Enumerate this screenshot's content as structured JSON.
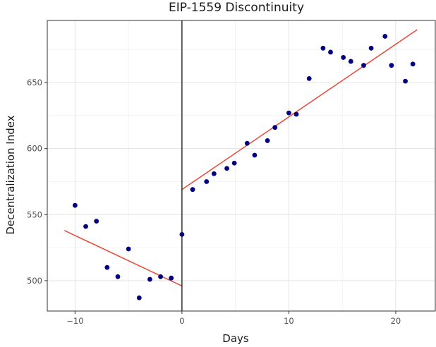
{
  "chart_data": {
    "type": "scatter",
    "title": "EIP-1559 Discontinuity",
    "xlabel": "Days",
    "ylabel": "Decentralization Index",
    "xlim": [
      -12.6,
      23.7
    ],
    "ylim": [
      477,
      697
    ],
    "xticks": [
      -10,
      0,
      10,
      20
    ],
    "yticks": [
      500,
      550,
      600,
      650
    ],
    "x_tick_labels": [
      "−10",
      "0",
      "10",
      "20"
    ],
    "y_tick_labels": [
      "500",
      "550",
      "600",
      "650"
    ],
    "grid": true,
    "cutoff_x": 0,
    "point_color": "#000080",
    "fit_color": "#e8493a",
    "cutoff_color": "#000000",
    "points": [
      {
        "x": -10,
        "y": 557
      },
      {
        "x": -9,
        "y": 541
      },
      {
        "x": -8,
        "y": 545
      },
      {
        "x": -7,
        "y": 510
      },
      {
        "x": -6,
        "y": 503
      },
      {
        "x": -5,
        "y": 524
      },
      {
        "x": -4,
        "y": 487
      },
      {
        "x": -3,
        "y": 501
      },
      {
        "x": -2,
        "y": 503
      },
      {
        "x": -1,
        "y": 502
      },
      {
        "x": 0,
        "y": 535
      },
      {
        "x": 1,
        "y": 569
      },
      {
        "x": 2.3,
        "y": 575
      },
      {
        "x": 3,
        "y": 581
      },
      {
        "x": 4.2,
        "y": 585
      },
      {
        "x": 4.9,
        "y": 589
      },
      {
        "x": 6.1,
        "y": 604
      },
      {
        "x": 6.8,
        "y": 595
      },
      {
        "x": 8,
        "y": 606
      },
      {
        "x": 8.7,
        "y": 616
      },
      {
        "x": 10,
        "y": 627
      },
      {
        "x": 10.7,
        "y": 626
      },
      {
        "x": 11.9,
        "y": 653
      },
      {
        "x": 13.2,
        "y": 676
      },
      {
        "x": 13.9,
        "y": 673
      },
      {
        "x": 15.1,
        "y": 669
      },
      {
        "x": 15.8,
        "y": 666
      },
      {
        "x": 17,
        "y": 663
      },
      {
        "x": 17.7,
        "y": 676
      },
      {
        "x": 19,
        "y": 685
      },
      {
        "x": 19.6,
        "y": 663
      },
      {
        "x": 20.9,
        "y": 651
      },
      {
        "x": 21.6,
        "y": 664
      }
    ],
    "fit_lines": [
      {
        "x": [
          -11,
          0
        ],
        "y": [
          538,
          496
        ]
      },
      {
        "x": [
          0,
          22
        ],
        "y": [
          569,
          690
        ]
      }
    ]
  }
}
